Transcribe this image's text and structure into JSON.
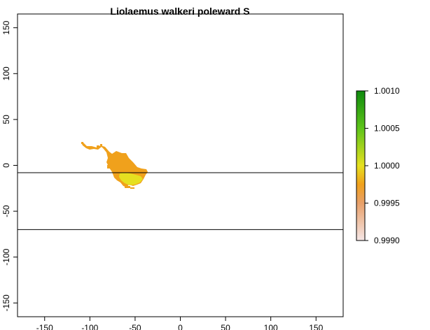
{
  "title": "Liolaemus walkeri poleward S",
  "map": {
    "x_ticks": [
      "-150",
      "-100",
      "-50",
      "0",
      "50",
      "100",
      "150"
    ],
    "x_tick_values": [
      -150,
      -100,
      -50,
      0,
      50,
      100,
      150
    ],
    "y_ticks": [
      "150",
      "100",
      "50",
      "0",
      "-50",
      "-100",
      "-150"
    ],
    "y_tick_values": [
      150,
      100,
      50,
      0,
      -50,
      -100,
      -150
    ],
    "xlim": [
      -180,
      180
    ],
    "ylim": [
      -165,
      165
    ],
    "reference_lines_lat": [
      -8,
      -70
    ],
    "range_colors": {
      "outer": "#f0a11c",
      "core": "#e6e020"
    }
  },
  "legend": {
    "labels": [
      "1.0010",
      "1.0005",
      "1.0000",
      "0.9995",
      "0.9990"
    ],
    "values": [
      1.001,
      1.0005,
      1.0,
      0.9995,
      0.999
    ],
    "range": [
      0.999,
      1.001
    ],
    "gradient": [
      {
        "value": 0.999,
        "color": "#f5e6e6"
      },
      {
        "value": 0.9995,
        "color": "#e8a06a"
      },
      {
        "value": 0.99975,
        "color": "#f0a11c"
      },
      {
        "value": 1.0,
        "color": "#e6e020"
      },
      {
        "value": 1.0005,
        "color": "#5ec41a"
      },
      {
        "value": 1.001,
        "color": "#0e8a0e"
      }
    ]
  }
}
